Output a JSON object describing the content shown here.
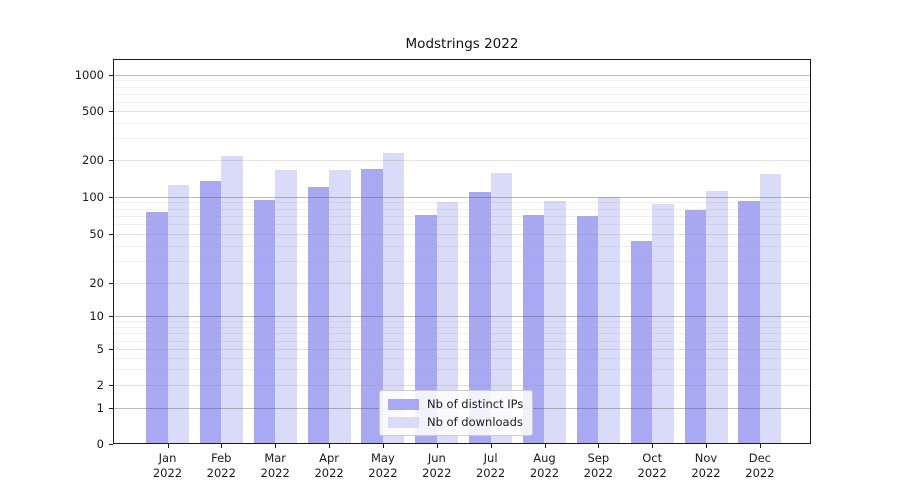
{
  "title": "Modstrings 2022",
  "legend": {
    "items": [
      {
        "label": "Nb of distinct IPs",
        "color": "#a9a9f3"
      },
      {
        "label": "Nb of downloads",
        "color": "#dadaf9"
      }
    ]
  },
  "x_axis": {
    "months": [
      "Jan",
      "Feb",
      "Mar",
      "Apr",
      "May",
      "Jun",
      "Jul",
      "Aug",
      "Sep",
      "Oct",
      "Nov",
      "Dec"
    ],
    "year": "2022"
  },
  "y_axis": {
    "tick_labels": [
      "0",
      "1",
      "2",
      "5",
      "10",
      "20",
      "50",
      "100",
      "200",
      "500",
      "1000"
    ]
  },
  "chart_data": {
    "type": "bar",
    "title": "Modstrings 2022",
    "categories": [
      "Jan 2022",
      "Feb 2022",
      "Mar 2022",
      "Apr 2022",
      "May 2022",
      "Jun 2022",
      "Jul 2022",
      "Aug 2022",
      "Sep 2022",
      "Oct 2022",
      "Nov 2022",
      "Dec 2022"
    ],
    "series": [
      {
        "name": "Nb of distinct IPs",
        "color": "#a9a9f3",
        "values": [
          75,
          135,
          95,
          120,
          167,
          71,
          110,
          71,
          70,
          44,
          78,
          93
        ]
      },
      {
        "name": "Nb of downloads",
        "color": "#dadaf9",
        "values": [
          125,
          215,
          164,
          165,
          225,
          90,
          157,
          92,
          100,
          87,
          112,
          154
        ]
      }
    ],
    "yticks": [
      0,
      1,
      2,
      5,
      10,
      20,
      50,
      100,
      200,
      500,
      1000
    ],
    "ylim": [
      0,
      1350
    ],
    "yscale": "log-like (compressed below 10, linear 0-1)",
    "grid": true,
    "gridline_values": {
      "major": [
        1,
        10,
        100,
        1000
      ],
      "mid": [
        2,
        5,
        20,
        50,
        200,
        500
      ],
      "minor": [
        3,
        4,
        6,
        7,
        8,
        9,
        30,
        40,
        60,
        70,
        80,
        90,
        300,
        400,
        600,
        700,
        800,
        900
      ]
    },
    "legend_position": "lower center"
  }
}
